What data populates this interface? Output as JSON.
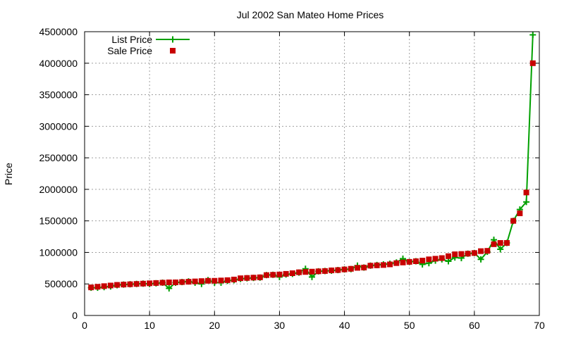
{
  "chart_data": {
    "type": "line",
    "title": "Jul 2002 San Mateo Home Prices",
    "xlabel": "",
    "ylabel": "Price",
    "xlim": [
      0,
      70
    ],
    "ylim": [
      0,
      4500000
    ],
    "xticks": [
      0,
      10,
      20,
      30,
      40,
      50,
      60,
      70
    ],
    "yticks": [
      0,
      500000,
      1000000,
      1500000,
      2000000,
      2500000,
      3000000,
      3500000,
      4000000,
      4500000
    ],
    "grid": true,
    "legend_position": "top-left",
    "x": [
      1,
      2,
      3,
      4,
      5,
      6,
      7,
      8,
      9,
      10,
      11,
      12,
      13,
      14,
      15,
      16,
      17,
      18,
      19,
      20,
      21,
      22,
      23,
      24,
      25,
      26,
      27,
      28,
      29,
      30,
      31,
      32,
      33,
      34,
      35,
      36,
      37,
      38,
      39,
      40,
      41,
      42,
      43,
      44,
      45,
      46,
      47,
      48,
      49,
      50,
      51,
      52,
      53,
      54,
      55,
      56,
      57,
      58,
      59,
      60,
      61,
      62,
      63,
      64,
      65,
      66,
      67,
      68,
      69
    ],
    "series": [
      {
        "name": "List Price",
        "color": "#00a000",
        "marker": "plus",
        "line": true,
        "values": [
          440000,
          440000,
          450000,
          460000,
          480000,
          490000,
          495000,
          500000,
          505000,
          500000,
          510000,
          520000,
          430000,
          520000,
          530000,
          540000,
          520000,
          500000,
          560000,
          520000,
          520000,
          550000,
          560000,
          580000,
          590000,
          595000,
          600000,
          640000,
          645000,
          610000,
          650000,
          660000,
          680000,
          740000,
          610000,
          700000,
          705000,
          710000,
          720000,
          730000,
          735000,
          790000,
          760000,
          790000,
          800000,
          810000,
          820000,
          840000,
          900000,
          850000,
          860000,
          810000,
          830000,
          870000,
          890000,
          860000,
          920000,
          910000,
          980000,
          990000,
          890000,
          1010000,
          1200000,
          1050000,
          1150000,
          1500000,
          1680000,
          1800000,
          4450000
        ]
      },
      {
        "name": "Sale Price",
        "color": "#c80000",
        "marker": "square",
        "line": false,
        "values": [
          445000,
          455000,
          465000,
          475000,
          485000,
          490000,
          495000,
          500000,
          505000,
          510000,
          515000,
          520000,
          525000,
          525000,
          530000,
          535000,
          540000,
          545000,
          550000,
          550000,
          555000,
          560000,
          570000,
          590000,
          595000,
          600000,
          605000,
          640000,
          645000,
          650000,
          660000,
          670000,
          685000,
          690000,
          695000,
          700000,
          705000,
          715000,
          720000,
          730000,
          740000,
          755000,
          760000,
          790000,
          795000,
          800000,
          810000,
          830000,
          840000,
          850000,
          860000,
          870000,
          890000,
          900000,
          910000,
          940000,
          970000,
          975000,
          980000,
          990000,
          1020000,
          1025000,
          1130000,
          1150000,
          1150000,
          1500000,
          1620000,
          1950000,
          4000000
        ]
      }
    ]
  }
}
